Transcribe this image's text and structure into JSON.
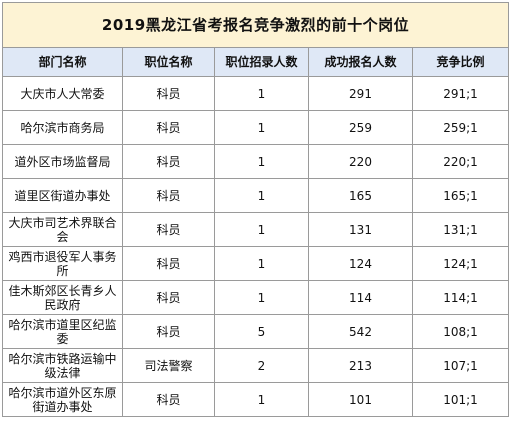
{
  "title": "2019黑龙江省考报名竞争激烈的前十个岗位",
  "headers": [
    "部门名称",
    "职位名称",
    "职位招录人数",
    "成功报名人数",
    "竞争比例"
  ],
  "rows": [
    {
      "dept": "大庆市人大常委",
      "position": "科员",
      "quota": "1",
      "applicants": "291",
      "ratio": "291;1"
    },
    {
      "dept": "哈尔滨市商务局",
      "position": "科员",
      "quota": "1",
      "applicants": "259",
      "ratio": "259;1"
    },
    {
      "dept": "道外区市场监督局",
      "position": "科员",
      "quota": "1",
      "applicants": "220",
      "ratio": "220;1"
    },
    {
      "dept": "道里区街道办事处",
      "position": "科员",
      "quota": "1",
      "applicants": "165",
      "ratio": "165;1"
    },
    {
      "dept": "大庆市司艺术界联合会",
      "position": "科员",
      "quota": "1",
      "applicants": "131",
      "ratio": "131;1"
    },
    {
      "dept": "鸡西市退役军人事务所",
      "position": "科员",
      "quota": "1",
      "applicants": "124",
      "ratio": "124;1"
    },
    {
      "dept": "佳木斯郊区长青乡人民政府",
      "position": "科员",
      "quota": "1",
      "applicants": "114",
      "ratio": "114;1"
    },
    {
      "dept": "哈尔滨市道里区纪监委",
      "position": "科员",
      "quota": "5",
      "applicants": "542",
      "ratio": "108;1"
    },
    {
      "dept": "哈尔滨市铁路运输中级法律",
      "position": "司法警察",
      "quota": "2",
      "applicants": "213",
      "ratio": "107;1"
    },
    {
      "dept": "哈尔滨市道外区东原街道办事处",
      "position": "科员",
      "quota": "1",
      "applicants": "101",
      "ratio": "101;1"
    }
  ]
}
